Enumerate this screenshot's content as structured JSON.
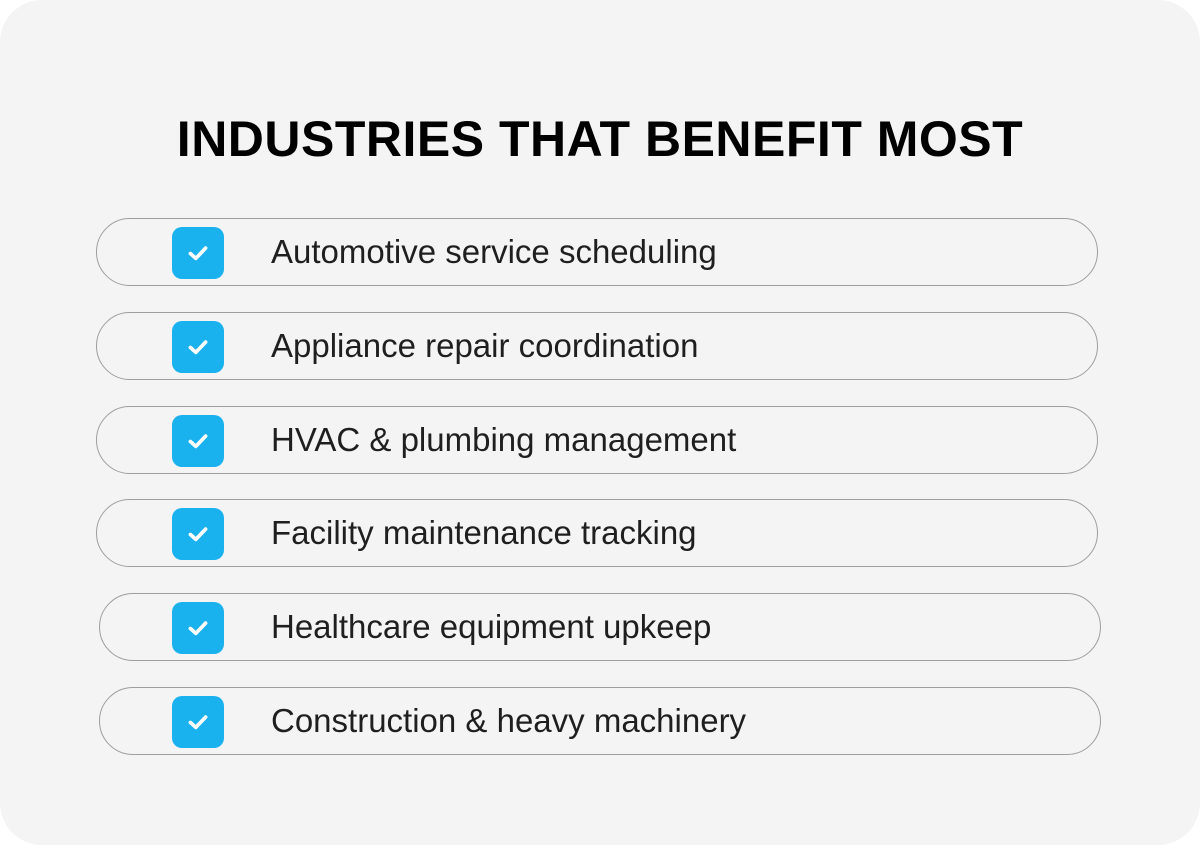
{
  "title": "INDUSTRIES THAT BENEFIT MOST",
  "accent_color": "#1ab1ef",
  "items": [
    {
      "label": "Automotive service scheduling",
      "icon": "checkbox-checked-icon"
    },
    {
      "label": "Appliance repair coordination",
      "icon": "checkbox-checked-icon"
    },
    {
      "label": "HVAC & plumbing management",
      "icon": "checkbox-checked-icon"
    },
    {
      "label": "Facility maintenance tracking",
      "icon": "checkbox-checked-icon"
    },
    {
      "label": "Healthcare equipment upkeep",
      "icon": "checkbox-checked-icon"
    },
    {
      "label": "Construction & heavy machinery",
      "icon": "checkbox-checked-icon"
    }
  ]
}
